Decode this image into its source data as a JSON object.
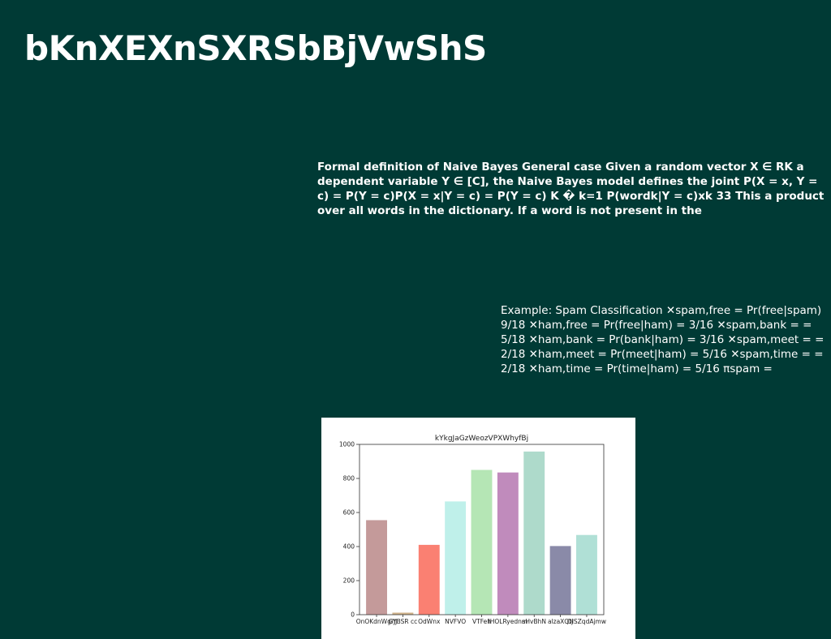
{
  "slide": {
    "title": "bKnXEXnSXRSbBjVwShS",
    "definition": "Formal definition of Naive Bayes General case Given a random vector X ∈ RK a dependent variable Y ∈ [C], the Naive Bayes model defines the joint P(X = x, Y = c) = P(Y = c)P(X = x|Y = c) = P(Y = c) K � k=1 P(wordk|Y = c)xk 33 This a product over all words in the dictionary. If a word is not present in the",
    "example": "Example: Spam Classification ✕spam,free = Pr(free|spam) 9/18 ✕ham,free = Pr(free|ham) = 3/16 ✕spam,bank = = 5/18 ✕ham,bank = Pr(bank|ham) = 3/16 ✕spam,meet = = 2/18 ✕ham,meet = Pr(meet|ham) = 5/16 ✕spam,time = = 2/18 ✕ham,time = Pr(time|ham) = 5/16 πspam ="
  },
  "chart_data": {
    "type": "bar",
    "title": "kYkgJaGzWeozVPXWhyfBj",
    "categories": [
      "OnOKdnWgrJJ",
      "GYBSR cc",
      "OdWnx",
      "NVFVO",
      "VTFeh",
      "IHOLRyednm",
      "sHvBhN",
      "alzaXQtj",
      "OlSZqdAjmw"
    ],
    "values": [
      555,
      12,
      410,
      665,
      850,
      835,
      958,
      403,
      468
    ],
    "colors": [
      "#c49a9a",
      "#d2b48c",
      "#fa8072",
      "#bff0ea",
      "#b5e6b5",
      "#c08bbc",
      "#aedacb",
      "#8a8aa8",
      "#b0e0d6"
    ],
    "ylim": [
      0,
      1000
    ],
    "yticks": [
      0,
      200,
      400,
      600,
      800,
      1000
    ],
    "xlabel": "",
    "ylabel": ""
  }
}
